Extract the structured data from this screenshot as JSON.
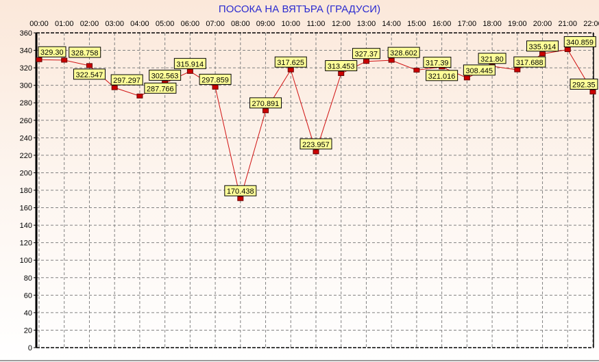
{
  "chart_data": {
    "type": "line",
    "title": "ПОСОКА НА ВЯТЪРА    (ГРАДУСИ)",
    "categories": [
      "00:00",
      "01:00",
      "02:00",
      "03:00",
      "04:00",
      "05:00",
      "06:00",
      "07:00",
      "08:00",
      "09:00",
      "10:00",
      "11:00",
      "12:00",
      "13:00",
      "14:00",
      "15:00",
      "16:00",
      "17:00",
      "18:00",
      "19:00",
      "20:00",
      "21:00",
      "22:00"
    ],
    "values": [
      329.3,
      328.758,
      322.547,
      297.297,
      287.766,
      302.563,
      315.914,
      297.859,
      170.438,
      270.891,
      317.625,
      223.957,
      313.453,
      327.37,
      328.602,
      317.39,
      321.016,
      308.445,
      321.8,
      317.688,
      335.914,
      340.859,
      292.35
    ],
    "labels": [
      "329.30",
      "328.758",
      "322.547",
      "297.297",
      "287.766",
      "302.563",
      "315.914",
      "297.859",
      "170.438",
      "270.891",
      "317.625",
      "223.957",
      "313.453",
      "327.37",
      "328.602",
      "317.39",
      "321.016",
      "308.445",
      "321.80",
      "317.688",
      "335.914",
      "340.859",
      "292.35"
    ],
    "ylim": [
      0,
      360
    ],
    "yticks": [
      0,
      20,
      40,
      60,
      80,
      100,
      120,
      140,
      160,
      180,
      200,
      220,
      240,
      260,
      280,
      300,
      320,
      340,
      360
    ],
    "xlabel": "",
    "ylabel": "",
    "grid": true,
    "x_axis_position": "top",
    "colors": {
      "line": "#d01010",
      "marker": "#cc0000",
      "label_bg": "#ffff99",
      "title": "#2a2ad0"
    }
  }
}
